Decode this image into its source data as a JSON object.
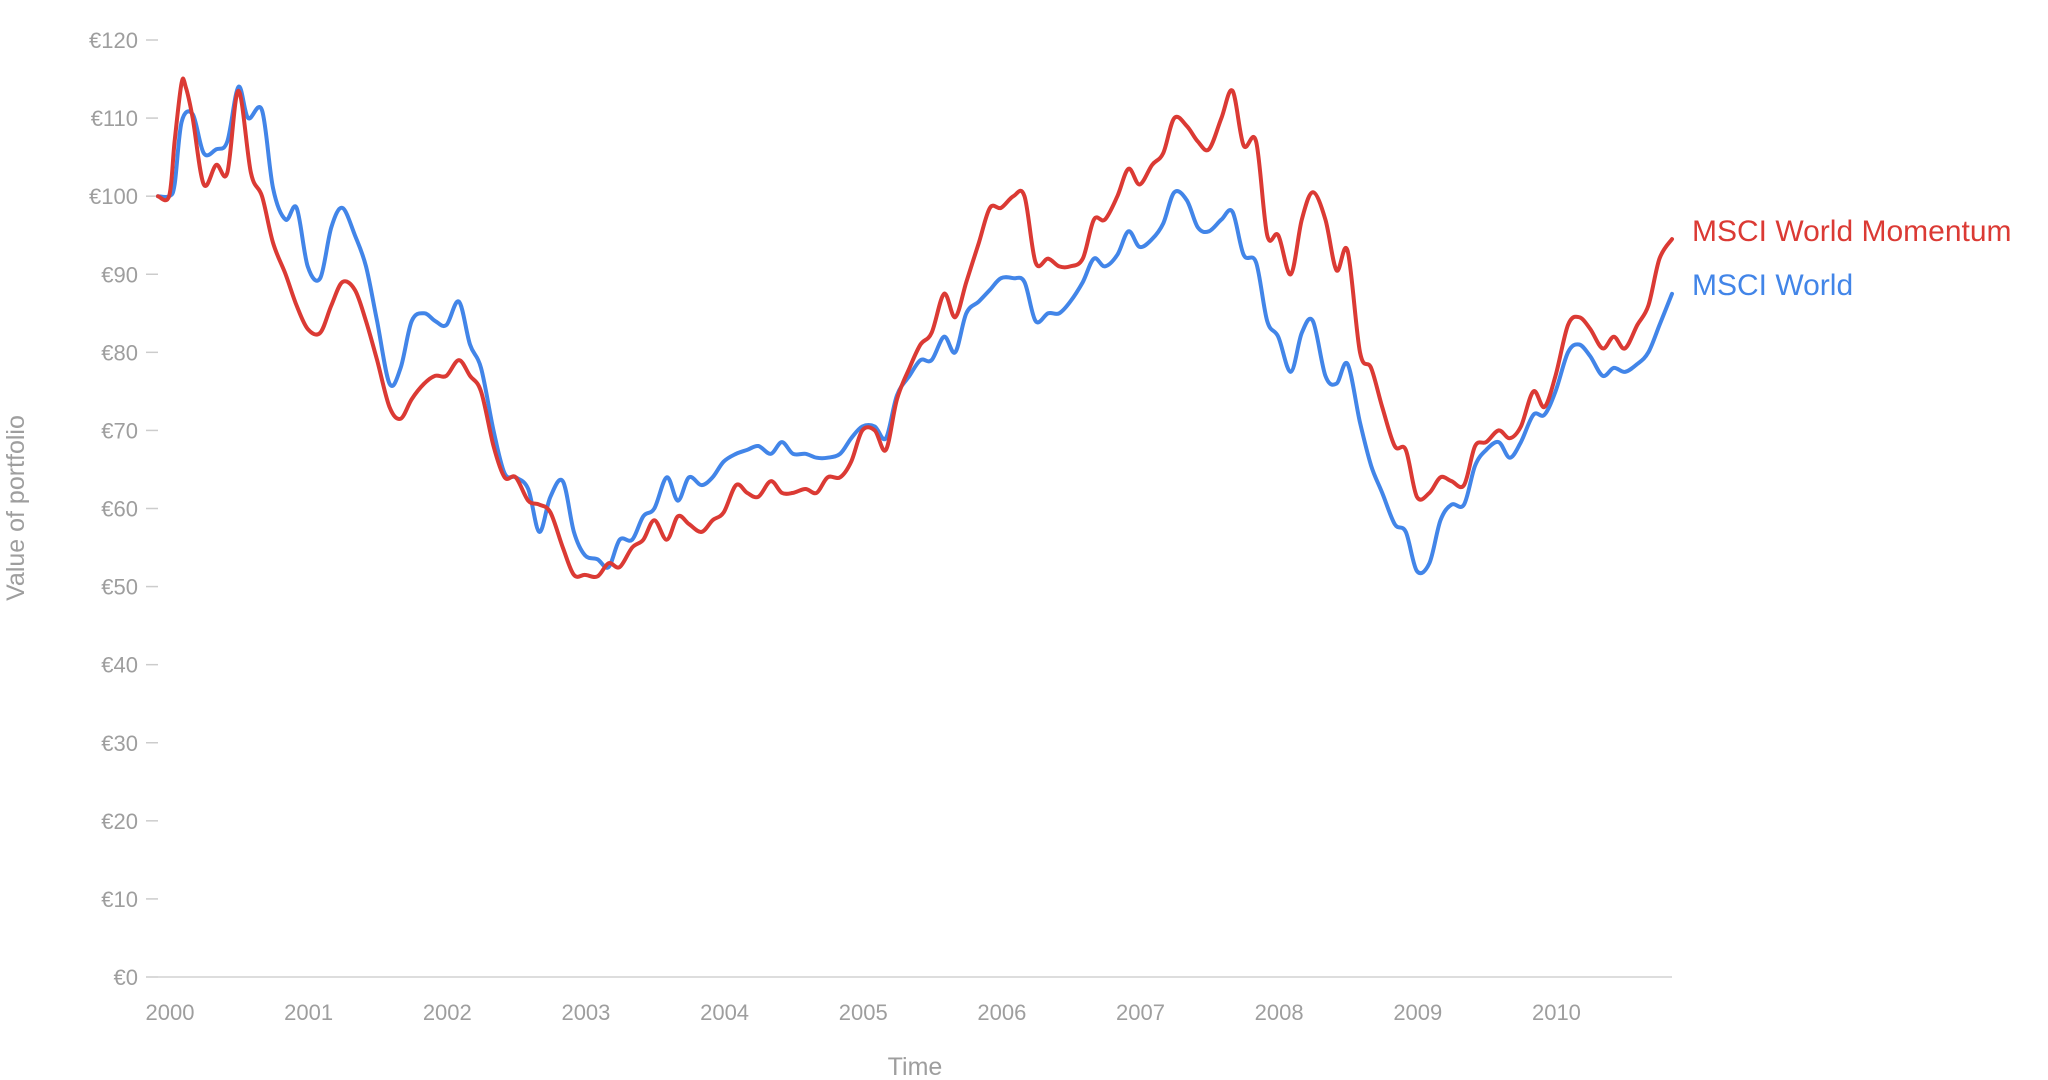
{
  "chart_data": {
    "type": "line",
    "xlabel": "Time",
    "ylabel": "Value of portfolio",
    "x_ticks": [
      "2000",
      "2001",
      "2002",
      "2003",
      "2004",
      "2005",
      "2006",
      "2007",
      "2008",
      "2009",
      "2010"
    ],
    "y_ticks": [
      "€0",
      "€10",
      "€20",
      "€30",
      "€40",
      "€50",
      "€60",
      "€70",
      "€80",
      "€90",
      "€100",
      "€110",
      "€120"
    ],
    "xlim": [
      2000,
      2010.92
    ],
    "ylim": [
      0,
      120
    ],
    "grid": false,
    "legend": "inline-right",
    "series": [
      {
        "name": "MSCI World Momentum",
        "color": "#db3a34",
        "points": [
          [
            2000.0,
            100
          ],
          [
            2000.08,
            100
          ],
          [
            2000.12,
            107
          ],
          [
            2000.17,
            114.5
          ],
          [
            2000.2,
            114
          ],
          [
            2000.25,
            110
          ],
          [
            2000.33,
            101.5
          ],
          [
            2000.42,
            104
          ],
          [
            2000.5,
            103
          ],
          [
            2000.58,
            113.5
          ],
          [
            2000.67,
            103
          ],
          [
            2000.75,
            100
          ],
          [
            2000.83,
            94
          ],
          [
            2000.92,
            90
          ],
          [
            2001.0,
            86
          ],
          [
            2001.08,
            83
          ],
          [
            2001.17,
            82.5
          ],
          [
            2001.25,
            86
          ],
          [
            2001.33,
            89
          ],
          [
            2001.42,
            88
          ],
          [
            2001.5,
            84
          ],
          [
            2001.58,
            79
          ],
          [
            2001.67,
            73
          ],
          [
            2001.75,
            71.5
          ],
          [
            2001.83,
            74
          ],
          [
            2001.92,
            76
          ],
          [
            2002.0,
            77
          ],
          [
            2002.08,
            77
          ],
          [
            2002.17,
            79
          ],
          [
            2002.25,
            77
          ],
          [
            2002.33,
            75
          ],
          [
            2002.42,
            68
          ],
          [
            2002.5,
            64
          ],
          [
            2002.58,
            64
          ],
          [
            2002.67,
            61
          ],
          [
            2002.75,
            60.5
          ],
          [
            2002.83,
            59.5
          ],
          [
            2002.92,
            55
          ],
          [
            2003.0,
            51.5
          ],
          [
            2003.08,
            51.5
          ],
          [
            2003.17,
            51.3
          ],
          [
            2003.25,
            53
          ],
          [
            2003.33,
            52.5
          ],
          [
            2003.42,
            55
          ],
          [
            2003.5,
            56
          ],
          [
            2003.58,
            58.5
          ],
          [
            2003.67,
            56
          ],
          [
            2003.75,
            59
          ],
          [
            2003.83,
            58
          ],
          [
            2003.92,
            57
          ],
          [
            2004.0,
            58.5
          ],
          [
            2004.08,
            59.5
          ],
          [
            2004.17,
            63
          ],
          [
            2004.25,
            62
          ],
          [
            2004.33,
            61.5
          ],
          [
            2004.42,
            63.5
          ],
          [
            2004.5,
            62
          ],
          [
            2004.58,
            62
          ],
          [
            2004.67,
            62.5
          ],
          [
            2004.75,
            62
          ],
          [
            2004.83,
            64
          ],
          [
            2004.92,
            64
          ],
          [
            2005.0,
            66
          ],
          [
            2005.08,
            70
          ],
          [
            2005.17,
            70
          ],
          [
            2005.25,
            67.5
          ],
          [
            2005.33,
            74
          ],
          [
            2005.42,
            78
          ],
          [
            2005.5,
            81
          ],
          [
            2005.58,
            82.5
          ],
          [
            2005.67,
            87.5
          ],
          [
            2005.75,
            84.5
          ],
          [
            2005.83,
            89
          ],
          [
            2005.92,
            94
          ],
          [
            2006.0,
            98.5
          ],
          [
            2006.08,
            98.5
          ],
          [
            2006.17,
            100
          ],
          [
            2006.25,
            100
          ],
          [
            2006.33,
            91.5
          ],
          [
            2006.42,
            92
          ],
          [
            2006.5,
            91
          ],
          [
            2006.58,
            91
          ],
          [
            2006.67,
            92
          ],
          [
            2006.75,
            97
          ],
          [
            2006.83,
            97
          ],
          [
            2006.92,
            100
          ],
          [
            2007.0,
            103.5
          ],
          [
            2007.08,
            101.5
          ],
          [
            2007.17,
            104
          ],
          [
            2007.25,
            105.5
          ],
          [
            2007.33,
            110
          ],
          [
            2007.42,
            109
          ],
          [
            2007.5,
            107
          ],
          [
            2007.58,
            106
          ],
          [
            2007.67,
            110
          ],
          [
            2007.75,
            113.5
          ],
          [
            2007.83,
            106.5
          ],
          [
            2007.92,
            107
          ],
          [
            2008.0,
            95
          ],
          [
            2008.08,
            95
          ],
          [
            2008.17,
            90
          ],
          [
            2008.25,
            97
          ],
          [
            2008.33,
            100.5
          ],
          [
            2008.42,
            97
          ],
          [
            2008.5,
            90.5
          ],
          [
            2008.58,
            93
          ],
          [
            2008.67,
            80
          ],
          [
            2008.75,
            78
          ],
          [
            2008.83,
            73
          ],
          [
            2008.92,
            68
          ],
          [
            2009.0,
            67.5
          ],
          [
            2009.08,
            61.5
          ],
          [
            2009.17,
            62
          ],
          [
            2009.25,
            64
          ],
          [
            2009.33,
            63.5
          ],
          [
            2009.42,
            63
          ],
          [
            2009.5,
            68
          ],
          [
            2009.58,
            68.5
          ],
          [
            2009.67,
            70
          ],
          [
            2009.75,
            69
          ],
          [
            2009.83,
            70.5
          ],
          [
            2009.92,
            75
          ],
          [
            2010.0,
            73
          ],
          [
            2010.08,
            77
          ],
          [
            2010.17,
            83.5
          ],
          [
            2010.25,
            84.5
          ],
          [
            2010.33,
            83
          ],
          [
            2010.42,
            80.5
          ],
          [
            2010.5,
            82
          ],
          [
            2010.58,
            80.5
          ],
          [
            2010.67,
            83.5
          ],
          [
            2010.75,
            86
          ],
          [
            2010.83,
            92
          ],
          [
            2010.92,
            94.5
          ]
        ]
      },
      {
        "name": "MSCI World",
        "color": "#4285e8",
        "points": [
          [
            2000.0,
            100
          ],
          [
            2000.08,
            100
          ],
          [
            2000.12,
            101.5
          ],
          [
            2000.17,
            109.5
          ],
          [
            2000.25,
            110.5
          ],
          [
            2000.33,
            105.5
          ],
          [
            2000.42,
            106
          ],
          [
            2000.5,
            107
          ],
          [
            2000.58,
            114
          ],
          [
            2000.65,
            110
          ],
          [
            2000.75,
            111
          ],
          [
            2000.83,
            101
          ],
          [
            2000.92,
            97
          ],
          [
            2001.0,
            98.5
          ],
          [
            2001.08,
            91
          ],
          [
            2001.17,
            89.5
          ],
          [
            2001.25,
            96
          ],
          [
            2001.33,
            98.5
          ],
          [
            2001.42,
            95
          ],
          [
            2001.5,
            91
          ],
          [
            2001.58,
            84
          ],
          [
            2001.67,
            76
          ],
          [
            2001.75,
            78
          ],
          [
            2001.83,
            84
          ],
          [
            2001.92,
            85
          ],
          [
            2002.0,
            84
          ],
          [
            2002.08,
            83.5
          ],
          [
            2002.17,
            86.5
          ],
          [
            2002.25,
            81
          ],
          [
            2002.33,
            78
          ],
          [
            2002.42,
            70
          ],
          [
            2002.5,
            64.5
          ],
          [
            2002.58,
            64
          ],
          [
            2002.67,
            62.5
          ],
          [
            2002.75,
            57
          ],
          [
            2002.83,
            61.5
          ],
          [
            2002.92,
            63.5
          ],
          [
            2003.0,
            57
          ],
          [
            2003.08,
            54
          ],
          [
            2003.17,
            53.5
          ],
          [
            2003.25,
            52.5
          ],
          [
            2003.33,
            56
          ],
          [
            2003.42,
            56
          ],
          [
            2003.5,
            59
          ],
          [
            2003.58,
            60
          ],
          [
            2003.67,
            64
          ],
          [
            2003.75,
            61
          ],
          [
            2003.83,
            64
          ],
          [
            2003.92,
            63
          ],
          [
            2004.0,
            64
          ],
          [
            2004.08,
            66
          ],
          [
            2004.17,
            67
          ],
          [
            2004.25,
            67.5
          ],
          [
            2004.33,
            68
          ],
          [
            2004.42,
            67
          ],
          [
            2004.5,
            68.5
          ],
          [
            2004.58,
            67
          ],
          [
            2004.67,
            67
          ],
          [
            2004.75,
            66.5
          ],
          [
            2004.83,
            66.5
          ],
          [
            2004.92,
            67
          ],
          [
            2005.0,
            69
          ],
          [
            2005.08,
            70.5
          ],
          [
            2005.17,
            70.5
          ],
          [
            2005.25,
            69
          ],
          [
            2005.33,
            74.5
          ],
          [
            2005.42,
            77
          ],
          [
            2005.5,
            79
          ],
          [
            2005.58,
            79
          ],
          [
            2005.67,
            82
          ],
          [
            2005.75,
            80
          ],
          [
            2005.83,
            85
          ],
          [
            2005.92,
            86.5
          ],
          [
            2006.0,
            88
          ],
          [
            2006.08,
            89.5
          ],
          [
            2006.17,
            89.5
          ],
          [
            2006.25,
            89
          ],
          [
            2006.33,
            84
          ],
          [
            2006.42,
            85
          ],
          [
            2006.5,
            85
          ],
          [
            2006.58,
            86.5
          ],
          [
            2006.67,
            89
          ],
          [
            2006.75,
            92
          ],
          [
            2006.83,
            91
          ],
          [
            2006.92,
            92.5
          ],
          [
            2007.0,
            95.5
          ],
          [
            2007.08,
            93.5
          ],
          [
            2007.17,
            94.5
          ],
          [
            2007.25,
            96.5
          ],
          [
            2007.33,
            100.5
          ],
          [
            2007.42,
            99.5
          ],
          [
            2007.5,
            96
          ],
          [
            2007.58,
            95.5
          ],
          [
            2007.67,
            97
          ],
          [
            2007.75,
            98
          ],
          [
            2007.83,
            92.5
          ],
          [
            2007.92,
            91.5
          ],
          [
            2008.0,
            84
          ],
          [
            2008.08,
            82
          ],
          [
            2008.17,
            77.5
          ],
          [
            2008.25,
            82.5
          ],
          [
            2008.33,
            84
          ],
          [
            2008.42,
            77
          ],
          [
            2008.5,
            76
          ],
          [
            2008.58,
            78.5
          ],
          [
            2008.67,
            71
          ],
          [
            2008.75,
            65.5
          ],
          [
            2008.83,
            62
          ],
          [
            2008.92,
            58
          ],
          [
            2009.0,
            57
          ],
          [
            2009.08,
            52
          ],
          [
            2009.17,
            53
          ],
          [
            2009.25,
            58.5
          ],
          [
            2009.33,
            60.5
          ],
          [
            2009.42,
            60.5
          ],
          [
            2009.5,
            65.5
          ],
          [
            2009.58,
            67.5
          ],
          [
            2009.67,
            68.5
          ],
          [
            2009.75,
            66.5
          ],
          [
            2009.83,
            68.5
          ],
          [
            2009.92,
            72
          ],
          [
            2010.0,
            72
          ],
          [
            2010.08,
            75
          ],
          [
            2010.17,
            80
          ],
          [
            2010.25,
            81
          ],
          [
            2010.33,
            79.5
          ],
          [
            2010.42,
            77
          ],
          [
            2010.5,
            78
          ],
          [
            2010.58,
            77.5
          ],
          [
            2010.67,
            78.5
          ],
          [
            2010.75,
            80
          ],
          [
            2010.83,
            83.5
          ],
          [
            2010.92,
            87.5
          ]
        ]
      }
    ]
  }
}
